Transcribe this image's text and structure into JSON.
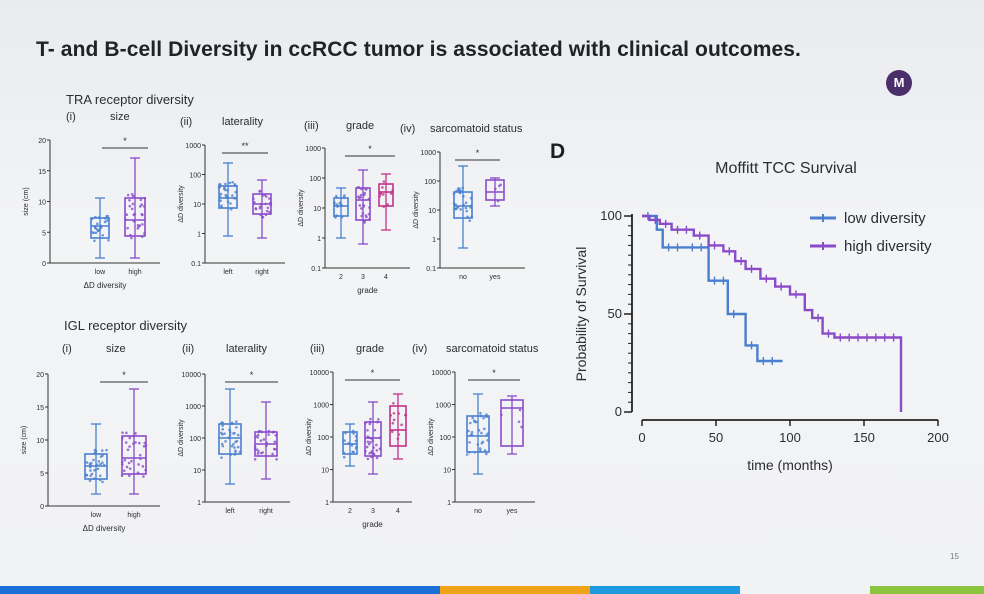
{
  "slide": {
    "title": "T- and B-cell Diversity in ccRCC tumor is associated with clinical outcomes.",
    "logo_text": "M",
    "page_number": "15",
    "panel_letter": "D"
  },
  "tra": {
    "heading": "TRA receptor diversity",
    "panels": [
      {
        "label": "(i)",
        "title": "size",
        "sig": "*",
        "ylabel": "size (cm)",
        "xlabel": "ΔD diversity",
        "yticks": [
          "0",
          "5",
          "10",
          "15",
          "20"
        ],
        "categories": [
          "low",
          "high"
        ]
      },
      {
        "label": "(ii)",
        "title": "laterality",
        "sig": "**",
        "ylabel": "ΔD diversity",
        "yticks": [
          "0.1",
          "1",
          "10",
          "100",
          "1000"
        ],
        "categories": [
          "left",
          "right"
        ]
      },
      {
        "label": "(iii)",
        "title": "grade",
        "sig": "*",
        "ylabel": "ΔD diversity",
        "xlabel": "grade",
        "yticks": [
          "0.1",
          "1",
          "10",
          "100",
          "1000"
        ],
        "categories": [
          "2",
          "3",
          "4"
        ]
      },
      {
        "label": "(iv)",
        "title": "sarcomatoid status",
        "sig": "*",
        "ylabel": "ΔD diversity",
        "yticks": [
          "0.1",
          "1",
          "10",
          "100",
          "1000"
        ],
        "categories": [
          "no",
          "yes"
        ]
      }
    ]
  },
  "igl": {
    "heading": "IGL receptor diversity",
    "panels": [
      {
        "label": "(i)",
        "title": "size",
        "sig": "*",
        "ylabel": "size (cm)",
        "xlabel": "ΔD diversity",
        "yticks": [
          "0",
          "5",
          "10",
          "15",
          "20"
        ],
        "categories": [
          "low",
          "high"
        ]
      },
      {
        "label": "(ii)",
        "title": "laterality",
        "sig": "*",
        "ylabel": "ΔD diversity",
        "yticks": [
          "1",
          "10",
          "100",
          "1000",
          "10000"
        ],
        "categories": [
          "left",
          "right"
        ]
      },
      {
        "label": "(iii)",
        "title": "grade",
        "sig": "*",
        "ylabel": "ΔD diversity",
        "xlabel": "grade",
        "yticks": [
          "1",
          "10",
          "100",
          "1000",
          "10000"
        ],
        "categories": [
          "2",
          "3",
          "4"
        ]
      },
      {
        "label": "(iv)",
        "title": "sarcomatoid status",
        "sig": "*",
        "ylabel": "ΔD diversity",
        "yticks": [
          "1",
          "10",
          "100",
          "1000",
          "10000"
        ],
        "categories": [
          "no",
          "yes"
        ]
      }
    ]
  },
  "colors": {
    "blue": "#4a7fd0",
    "purple": "#8a4bc9",
    "magenta": "#c0338a",
    "bars": [
      "#1a6fd6",
      "#f0a318",
      "#1e9be0",
      "#8bc53f"
    ]
  },
  "chart_data": [
    {
      "type": "line",
      "step": true,
      "title": "Moffitt TCC Survival",
      "xlabel": "time (months)",
      "ylabel": "Probability of Survival",
      "xlim": [
        0,
        200
      ],
      "ylim": [
        0,
        100
      ],
      "xticks": [
        0,
        50,
        100,
        150,
        200
      ],
      "yticks": [
        0,
        50,
        100
      ],
      "legend_position": "top-right",
      "series": [
        {
          "name": "low diversity",
          "color": "#4a7fd0",
          "x": [
            0,
            10,
            10,
            14,
            14,
            30,
            30,
            45,
            45,
            58,
            58,
            70,
            70,
            78,
            78,
            95
          ],
          "y": [
            100,
            100,
            93,
            93,
            84,
            84,
            84,
            84,
            67,
            67,
            50,
            50,
            34,
            34,
            26,
            26
          ]
        },
        {
          "name": "high diversity",
          "color": "#8a4bc9",
          "x": [
            0,
            5,
            5,
            12,
            12,
            20,
            20,
            35,
            35,
            45,
            45,
            55,
            55,
            63,
            63,
            70,
            70,
            80,
            80,
            90,
            90,
            100,
            100,
            110,
            110,
            115,
            115,
            122,
            122,
            130,
            130,
            175,
            175
          ],
          "y": [
            100,
            100,
            98,
            98,
            96,
            96,
            93,
            93,
            90,
            90,
            85,
            85,
            82,
            82,
            77,
            77,
            73,
            73,
            68,
            68,
            64,
            64,
            60,
            60,
            52,
            52,
            48,
            48,
            40,
            40,
            38,
            38,
            0
          ]
        }
      ]
    }
  ]
}
